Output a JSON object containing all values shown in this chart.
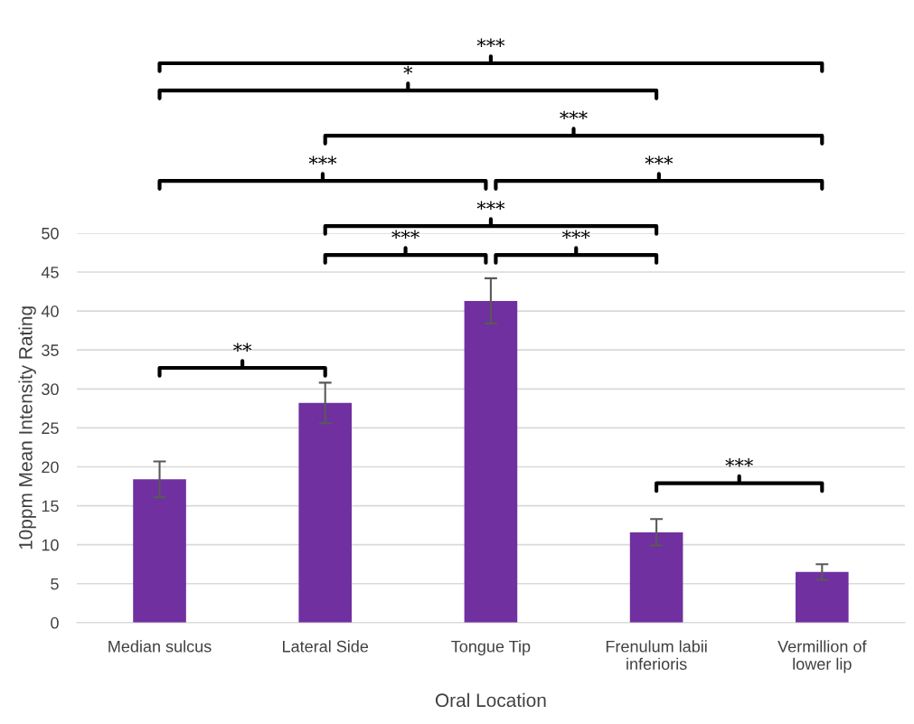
{
  "chart_data": {
    "type": "bar",
    "xlabel": "Oral Location",
    "ylabel": "10ppm Mean Intensity Rating",
    "categories": [
      "Median sulcus",
      "Lateral Side",
      "Tongue Tip",
      "Frenulum labii\ninferioris",
      "Vermillion of\nlower lip"
    ],
    "values": [
      18.4,
      28.2,
      41.3,
      11.6,
      6.5
    ],
    "errors": [
      2.3,
      2.6,
      2.9,
      1.7,
      1.0
    ],
    "color": "#7030a0",
    "ylim": [
      0,
      50
    ],
    "yticks": [
      0,
      5,
      10,
      15,
      20,
      25,
      30,
      35,
      40,
      45,
      50
    ],
    "grid": "y",
    "annotations": [
      "***",
      "*",
      "***",
      "***",
      "***",
      "***",
      "***",
      "***",
      "**",
      "***"
    ]
  }
}
